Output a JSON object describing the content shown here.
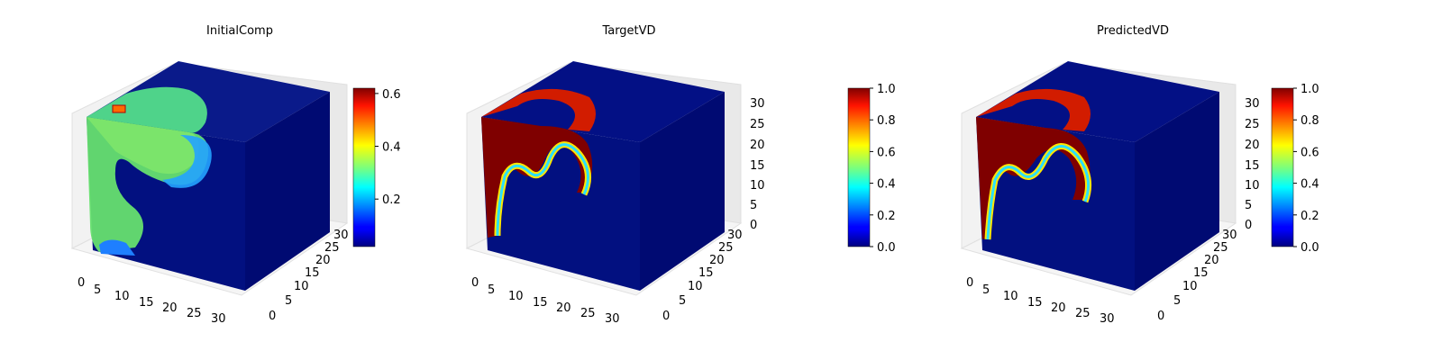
{
  "chart_data": [
    {
      "type": "voxel-3d",
      "title": "InitialComp",
      "colormap": "jet",
      "axes": {
        "x_ticks": [
          "0",
          "5",
          "10",
          "15",
          "20",
          "25",
          "30"
        ],
        "y_ticks": [
          "0",
          "5",
          "10",
          "15",
          "20",
          "25",
          "30"
        ],
        "z_ticks": [
          "",
          "",
          "",
          "",
          "",
          "",
          ""
        ]
      },
      "colorbar": {
        "range": [
          0.02,
          0.62
        ],
        "ticks": [
          "0.2",
          "0.4",
          "0.6"
        ],
        "tick_values": [
          0.2,
          0.4,
          0.6
        ]
      },
      "grid": true
    },
    {
      "type": "voxel-3d",
      "title": "TargetVD",
      "colormap": "jet",
      "axes": {
        "x_ticks": [
          "0",
          "5",
          "10",
          "15",
          "20",
          "25",
          "30"
        ],
        "y_ticks": [
          "0",
          "5",
          "10",
          "15",
          "20",
          "25",
          "30"
        ],
        "z_ticks": [
          "0",
          "5",
          "10",
          "15",
          "20",
          "25",
          "30"
        ]
      },
      "colorbar": {
        "range": [
          0.0,
          1.0
        ],
        "ticks": [
          "0.0",
          "0.2",
          "0.4",
          "0.6",
          "0.8",
          "1.0"
        ],
        "tick_values": [
          0,
          0.2,
          0.4,
          0.6,
          0.8,
          1.0
        ]
      },
      "grid": true
    },
    {
      "type": "voxel-3d",
      "title": "PredictedVD",
      "colormap": "jet",
      "axes": {
        "x_ticks": [
          "0",
          "5",
          "10",
          "15",
          "20",
          "25",
          "30"
        ],
        "y_ticks": [
          "0",
          "5",
          "10",
          "15",
          "20",
          "25",
          "30"
        ],
        "z_ticks": [
          "0",
          "5",
          "10",
          "15",
          "20",
          "25",
          "30"
        ]
      },
      "colorbar": {
        "range": [
          0.0,
          1.0
        ],
        "ticks": [
          "0.0",
          "0.2",
          "0.4",
          "0.6",
          "0.8",
          "1.0"
        ],
        "tick_values": [
          0,
          0.2,
          0.4,
          0.6,
          0.8,
          1.0
        ]
      },
      "grid": true
    }
  ]
}
